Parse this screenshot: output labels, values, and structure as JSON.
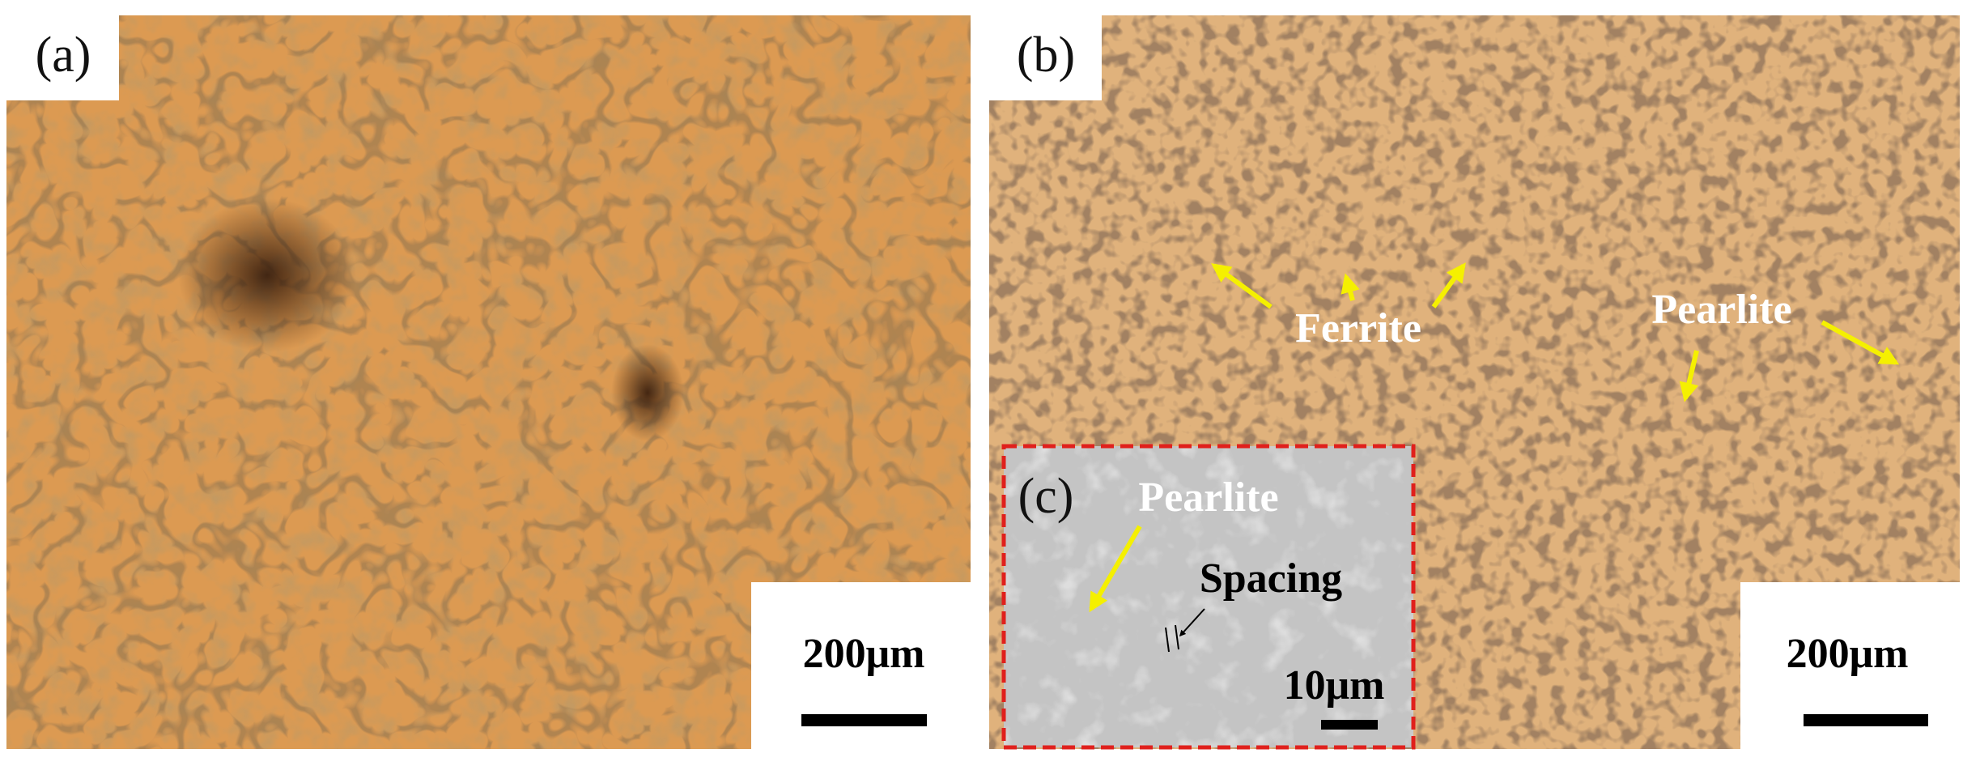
{
  "panels": [
    {
      "label": "(a)",
      "scale_bar": "200μm"
    },
    {
      "label": "(b)",
      "scale_bar": "200μm",
      "annotations": [
        "Ferrite",
        "Pearlite"
      ],
      "inset": {
        "label": "(c)",
        "annotations": [
          "Pearlite",
          "Spacing"
        ],
        "scale_bar": "10μm"
      }
    }
  ]
}
